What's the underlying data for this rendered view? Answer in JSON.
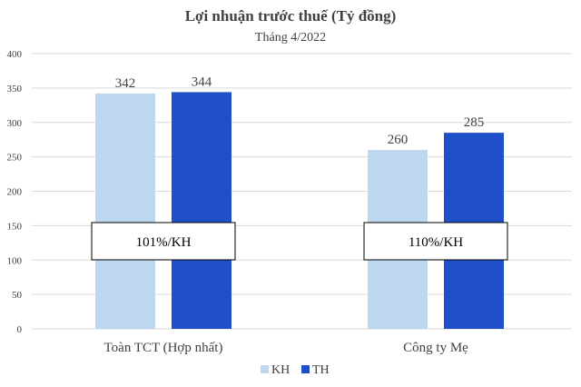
{
  "chart_data": {
    "type": "bar",
    "title": "Lợi nhuận trước thuế (Tỷ đồng)",
    "subtitle": "Tháng 4/2022",
    "categories": [
      "Toàn TCT (Hợp nhất)",
      "Công ty Mẹ"
    ],
    "series": [
      {
        "name": "KH",
        "values": [
          342,
          260
        ],
        "color": "#BDD7EE"
      },
      {
        "name": "TH",
        "values": [
          344,
          285
        ],
        "color": "#1F4FC8"
      }
    ],
    "annotations": [
      "101%/KH",
      "110%/KH"
    ],
    "ylim": [
      0,
      400
    ],
    "yticks": [
      0,
      50,
      100,
      150,
      200,
      250,
      300,
      350,
      400
    ],
    "grid": true,
    "legend": "bottom"
  }
}
